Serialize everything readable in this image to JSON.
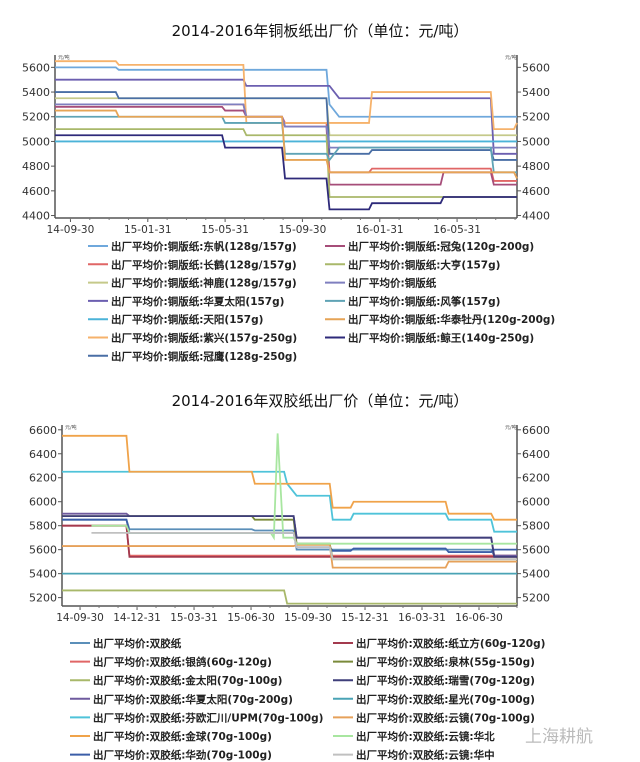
{
  "watermark": "上海耕航",
  "chart_data": [
    {
      "type": "line",
      "title": "2014-2016年铜板纸出厂价（单位：元/吨）",
      "unit": "元/吨",
      "xlabel": "",
      "ylabel": "元/吨",
      "x_unit": "months since 2014-09-30",
      "xlim": [
        -0.8,
        23.1
      ],
      "ylim": [
        4380,
        5700
      ],
      "yticks": [
        4400,
        4600,
        4800,
        5000,
        5200,
        5400,
        5600
      ],
      "xticks": [
        {
          "x": 0,
          "label": "14-09-30"
        },
        {
          "x": 4,
          "label": "15-01-31"
        },
        {
          "x": 8,
          "label": "15-05-31"
        },
        {
          "x": 12,
          "label": "15-09-30"
        },
        {
          "x": 16,
          "label": "16-01-31"
        },
        {
          "x": 20,
          "label": "16-05-31"
        }
      ],
      "grid": false,
      "legend_position": "bottom",
      "series": [
        {
          "name": "出厂平均价:铜版纸:东帆(128g/157g)",
          "color": "#6fa8dc",
          "points": [
            [
              -0.8,
              5600
            ],
            [
              2.5,
              5580
            ],
            [
              13.4,
              5300
            ],
            [
              13.9,
              5200
            ],
            [
              23.1,
              5200
            ]
          ]
        },
        {
          "name": "出厂平均价:铜版纸:长鹤(128g/157g)",
          "color": "#e06666",
          "points": [
            [
              -0.8,
              5300
            ],
            [
              9.1,
              5200
            ],
            [
              11.1,
              5150
            ],
            [
              13.4,
              4750
            ],
            [
              15.6,
              4780
            ],
            [
              21.9,
              4680
            ],
            [
              23.1,
              4680
            ]
          ]
        },
        {
          "name": "出厂平均价:铜版纸:神鹿(128g/157g)",
          "color": "#c5c98a",
          "points": [
            [
              -0.8,
              5350
            ],
            [
              9.1,
              5350
            ],
            [
              13.4,
              5050
            ],
            [
              23.1,
              5050
            ]
          ]
        },
        {
          "name": "出厂平均价:铜版纸:华夏太阳(157g)",
          "color": "#6c5fb0",
          "points": [
            [
              -0.8,
              5500
            ],
            [
              9.1,
              5450
            ],
            [
              13.4,
              5450
            ],
            [
              13.9,
              5350
            ],
            [
              21.9,
              4900
            ],
            [
              23.1,
              4900
            ]
          ]
        },
        {
          "name": "出厂平均价:铜版纸:天阳(157g)",
          "color": "#4bb3d8",
          "points": [
            [
              -0.8,
              5000
            ],
            [
              23.1,
              5000
            ]
          ]
        },
        {
          "name": "出厂平均价:铜版纸:紫兴(157g-250g)",
          "color": "#f6b26b",
          "points": [
            [
              -0.8,
              5650
            ],
            [
              2.5,
              5620
            ],
            [
              9.1,
              5150
            ],
            [
              15.6,
              5400
            ],
            [
              21.9,
              5100
            ],
            [
              23.1,
              5150
            ]
          ]
        },
        {
          "name": "出厂平均价:铜版纸:冠鹰(128g-250g)",
          "color": "#4a6fa5",
          "points": [
            [
              -0.8,
              5400
            ],
            [
              2.5,
              5350
            ],
            [
              13.4,
              4900
            ],
            [
              15.6,
              4930
            ],
            [
              21.9,
              4850
            ],
            [
              23.1,
              4850
            ]
          ]
        },
        {
          "name": "出厂平均价:铜版纸:冠兔(120g-200g)",
          "color": "#a64d79",
          "points": [
            [
              -0.8,
              5280
            ],
            [
              8,
              5250
            ],
            [
              9.1,
              5200
            ],
            [
              11.1,
              5120
            ],
            [
              13.4,
              4650
            ],
            [
              19.3,
              4750
            ],
            [
              21.9,
              4650
            ],
            [
              23.1,
              4650
            ]
          ]
        },
        {
          "name": "出厂平均价:铜版纸:大亨(157g)",
          "color": "#a9b86a",
          "points": [
            [
              -0.8,
              5100
            ],
            [
              9.1,
              5050
            ],
            [
              13.4,
              4550
            ],
            [
              19.3,
              4550
            ],
            [
              23.1,
              4550
            ]
          ]
        },
        {
          "name": "出厂平均价:铜版纸",
          "color": "#7f7fbf",
          "points": [
            [
              -0.8,
              5300
            ],
            [
              9.1,
              5200
            ],
            [
              11.1,
              5120
            ],
            [
              13.4,
              4950
            ],
            [
              23.1,
              4950
            ]
          ]
        },
        {
          "name": "出厂平均价:铜版纸:风筝(157g)",
          "color": "#5fa3b5",
          "points": [
            [
              -0.8,
              5200
            ],
            [
              8,
              5150
            ],
            [
              11.1,
              4900
            ],
            [
              13.4,
              4850
            ],
            [
              13.9,
              4950
            ],
            [
              21.9,
              4750
            ],
            [
              23.1,
              4750
            ]
          ]
        },
        {
          "name": "出厂平均价:铜版纸:华泰牡丹(120g-200g)",
          "color": "#e6a456",
          "points": [
            [
              -0.8,
              5250
            ],
            [
              2.5,
              5200
            ],
            [
              11.1,
              4850
            ],
            [
              13.4,
              4750
            ],
            [
              21.9,
              4750
            ],
            [
              23.1,
              4700
            ]
          ]
        },
        {
          "name": "出厂平均价:铜版纸:鲸王(140g-250g)",
          "color": "#2e2a7a",
          "points": [
            [
              -0.8,
              5050
            ],
            [
              8,
              4950
            ],
            [
              11.1,
              4700
            ],
            [
              13.4,
              4450
            ],
            [
              15.6,
              4500
            ],
            [
              19.3,
              4550
            ],
            [
              23.1,
              4550
            ]
          ]
        }
      ]
    },
    {
      "type": "line",
      "title": "2014-2016年双胶纸出厂价（单位：元/吨）",
      "unit": "元/吨",
      "xlabel": "",
      "ylabel": "元/吨",
      "x_unit": "months since 2014-09-30",
      "xlim": [
        -0.95,
        23
      ],
      "ylim": [
        5130,
        6640
      ],
      "yticks": [
        5200,
        5400,
        5600,
        5800,
        6000,
        6200,
        6400,
        6600
      ],
      "xticks": [
        {
          "x": 0,
          "label": "14-09-30"
        },
        {
          "x": 3,
          "label": "14-12-31"
        },
        {
          "x": 6,
          "label": "15-03-31"
        },
        {
          "x": 9,
          "label": "15-06-30"
        },
        {
          "x": 12,
          "label": "15-09-30"
        },
        {
          "x": 15,
          "label": "15-12-31"
        },
        {
          "x": 18,
          "label": "16-03-31"
        },
        {
          "x": 21,
          "label": "16-06-30"
        }
      ],
      "grid": false,
      "legend_position": "bottom",
      "series": [
        {
          "name": "出厂平均价:双胶纸",
          "color": "#5b8fb9",
          "points": [
            [
              -0.95,
              5850
            ],
            [
              2.6,
              5770
            ],
            [
              9.2,
              5760
            ],
            [
              11.4,
              5600
            ],
            [
              14.4,
              5600
            ],
            [
              21.8,
              5550
            ],
            [
              23,
              5550
            ]
          ]
        },
        {
          "name": "出厂平均价:双胶纸:银鸽(60g-120g)",
          "color": "#e06666",
          "points": [
            [
              -0.95,
              5800
            ],
            [
              2.6,
              5550
            ],
            [
              23,
              5550
            ]
          ]
        },
        {
          "name": "出厂平均价:双胶纸:金太阳(70g-100g)",
          "color": "#a8b86a",
          "points": [
            [
              -0.95,
              5260
            ],
            [
              10.9,
              5150
            ],
            [
              23,
              5150
            ]
          ]
        },
        {
          "name": "出厂平均价:双胶纸:华夏太阳(70g-200g)",
          "color": "#6f5a9e",
          "points": [
            [
              -0.95,
              5900
            ],
            [
              2.6,
              5880
            ],
            [
              11.4,
              5700
            ],
            [
              21.8,
              5550
            ],
            [
              23,
              5550
            ]
          ]
        },
        {
          "name": "出厂平均价:双胶纸:芬欧汇川/UPM(70g-100g)",
          "color": "#4fc3d9",
          "points": [
            [
              -0.95,
              6250
            ],
            [
              9.2,
              6250
            ],
            [
              10.9,
              6150
            ],
            [
              11.4,
              6050
            ],
            [
              13.3,
              5850
            ],
            [
              14.4,
              5900
            ],
            [
              19.4,
              5850
            ],
            [
              21.8,
              5750
            ],
            [
              23,
              5750
            ]
          ]
        },
        {
          "name": "出厂平均价:双胶纸:金球(70g-100g)",
          "color": "#f0a34a",
          "points": [
            [
              -0.95,
              6550
            ],
            [
              2.6,
              6250
            ],
            [
              9.2,
              6150
            ],
            [
              13.3,
              5950
            ],
            [
              14.4,
              6000
            ],
            [
              19.4,
              5900
            ],
            [
              21.8,
              5850
            ],
            [
              23,
              5850
            ]
          ]
        },
        {
          "name": "出厂平均价:双胶纸:华劲(70g-100g)",
          "color": "#3b5ea8",
          "points": [
            [
              -0.95,
              5850
            ],
            [
              2.6,
              5740
            ],
            [
              9.2,
              5740
            ],
            [
              11.4,
              5620
            ],
            [
              13.3,
              5590
            ],
            [
              14.4,
              5610
            ],
            [
              19.4,
              5580
            ],
            [
              21.8,
              5600
            ],
            [
              23,
              5600
            ]
          ]
        },
        {
          "name": "出厂平均价:双胶纸:纸立方(60g-120g)",
          "color": "#a33a4e",
          "points": [
            [
              -0.95,
              5800
            ],
            [
              2.6,
              5540
            ],
            [
              23,
              5540
            ]
          ]
        },
        {
          "name": "出厂平均价:双胶纸:泉林(55g-150g)",
          "color": "#7a8a3a",
          "points": [
            [
              -0.95,
              5880
            ],
            [
              9.2,
              5850
            ],
            [
              11.4,
              5650
            ],
            [
              13.3,
              5520
            ],
            [
              23,
              5520
            ]
          ]
        },
        {
          "name": "出厂平均价:双胶纸:瑞雪(70g-120g)",
          "color": "#3f3f7a",
          "points": [
            [
              -0.95,
              5880
            ],
            [
              11.4,
              5700
            ],
            [
              21.8,
              5540
            ],
            [
              23,
              5540
            ]
          ]
        },
        {
          "name": "出厂平均价:双胶纸:星光(70g-100g)",
          "color": "#4aa3b5",
          "points": [
            [
              -0.95,
              5400
            ],
            [
              23,
              5400
            ]
          ]
        },
        {
          "name": "出厂平均价:双胶纸:云镜(70g-100g)",
          "color": "#e6a15a",
          "points": [
            [
              -0.95,
              5630
            ],
            [
              11.4,
              5640
            ],
            [
              13.3,
              5450
            ],
            [
              19.4,
              5500
            ],
            [
              23,
              5500
            ]
          ]
        },
        {
          "name": "出厂平均价:双胶纸:云镜:华北",
          "color": "#a8e6a0",
          "points": [
            [
              0.6,
              5800
            ],
            [
              2.6,
              5740
            ],
            [
              9.2,
              5740
            ],
            [
              10.2,
              5700
            ],
            [
              10.4,
              6570
            ],
            [
              10.7,
              5700
            ],
            [
              11.4,
              5650
            ],
            [
              23,
              5650
            ]
          ]
        },
        {
          "name": "出厂平均价:双胶纸:云镜:华中",
          "color": "#c0c0c0",
          "points": [
            [
              0.6,
              5740
            ],
            [
              9.2,
              5740
            ],
            [
              11.4,
              5620
            ],
            [
              13.3,
              5520
            ],
            [
              23,
              5520
            ]
          ]
        }
      ]
    }
  ]
}
